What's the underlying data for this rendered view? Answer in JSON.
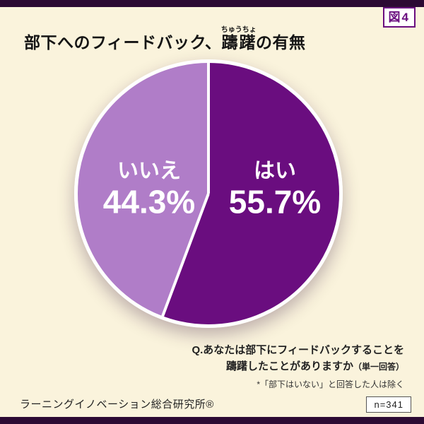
{
  "figure_label": "図4",
  "title": {
    "pre": "部下へのフィードバック、",
    "ruby_base": "躊躇",
    "ruby_text": "ちゅうちょ",
    "post": "の有無"
  },
  "question": {
    "line1": "Q.あなたは部下にフィードバックすることを",
    "line2_main": "躊躇したことがありますか",
    "line2_paren": "（単一回答）",
    "note": "*「部下はいない」と回答した人は除く"
  },
  "footer": {
    "organization": "ラーニングイノベーション総合研究所®",
    "sample_size": "n=341"
  },
  "chart_data": {
    "type": "pie",
    "title": "部下へのフィードバック、躊躇の有無",
    "unit": "%",
    "start_angle_deg": 0,
    "direction": "clockwise",
    "n": 341,
    "slices": [
      {
        "label": "はい",
        "value": 55.7,
        "percent_label": "55.7%",
        "color": "#6a0d7f"
      },
      {
        "label": "いいえ",
        "value": 44.3,
        "percent_label": "44.3%",
        "color": "#b07dc8"
      }
    ]
  },
  "colors": {
    "background": "#faf3dc",
    "edge_bar": "#2c0a33",
    "accent_dark": "#6a0d7f",
    "accent_light": "#b07dc8",
    "slice_text": "#ffffff"
  }
}
